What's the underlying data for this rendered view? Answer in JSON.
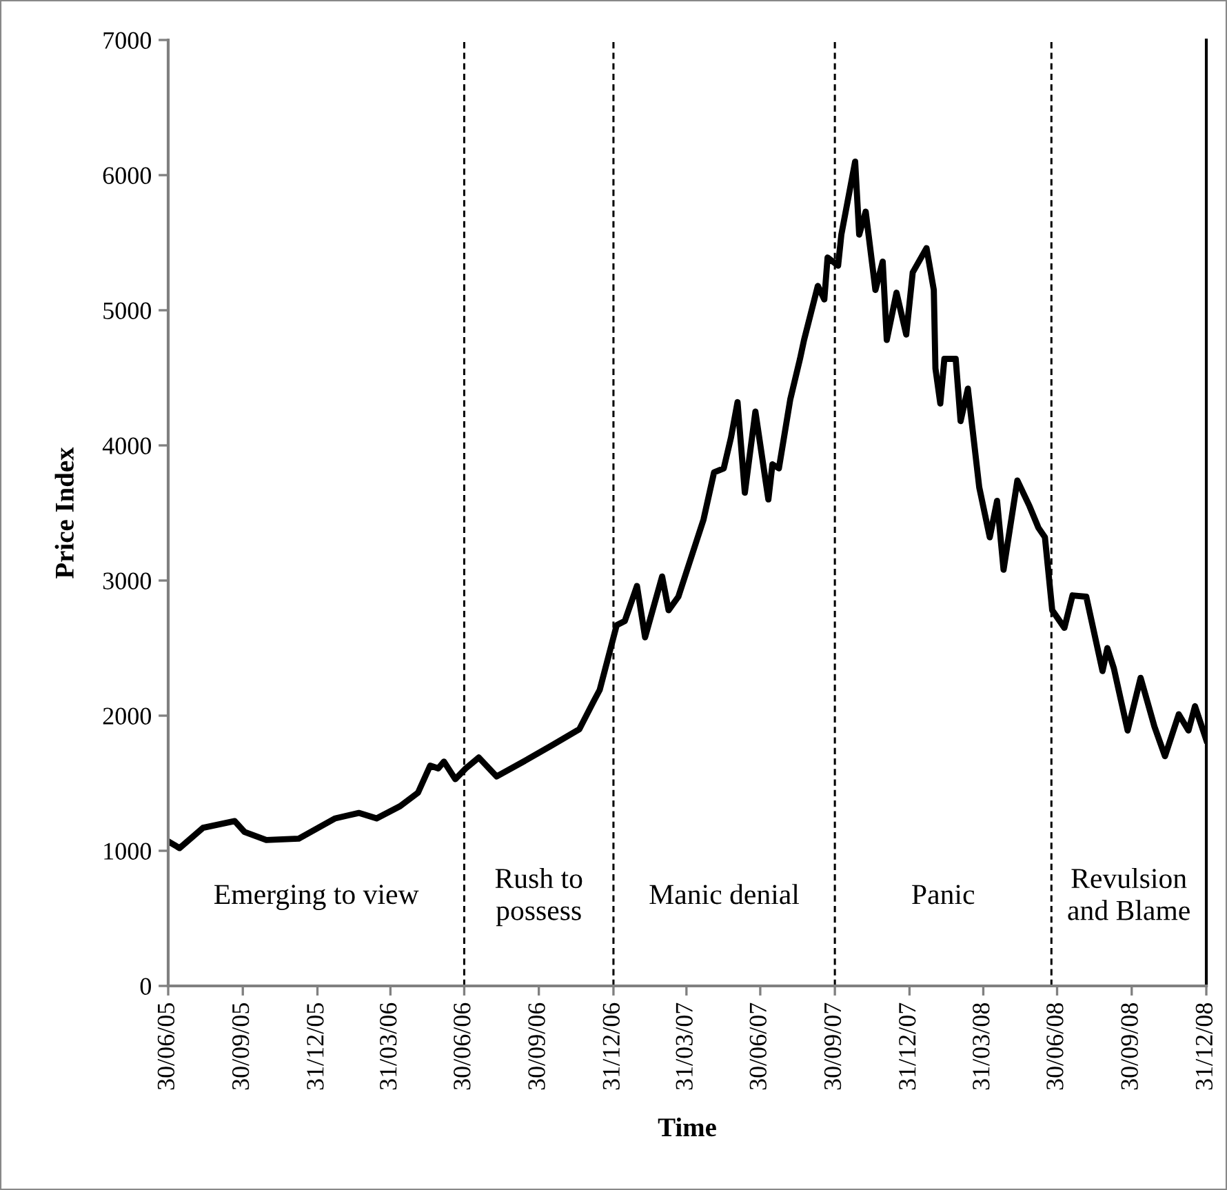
{
  "chart_data": {
    "type": "line",
    "xlabel": "Time",
    "ylabel": "Price Index",
    "x": [
      "2005-06-30",
      "2005-07-14",
      "2005-08-12",
      "2005-09-20",
      "2005-10-02",
      "2005-10-29",
      "2005-12-08",
      "2006-01-22",
      "2006-02-20",
      "2006-03-14",
      "2006-04-12",
      "2006-05-04",
      "2006-05-19",
      "2006-05-29",
      "2006-06-05",
      "2006-06-19",
      "2006-07-02",
      "2006-07-18",
      "2006-08-09",
      "2006-09-17",
      "2006-10-16",
      "2006-11-19",
      "2006-12-06",
      "2006-12-14",
      "2007-01-04",
      "2007-01-14",
      "2007-01-29",
      "2007-02-08",
      "2007-03-01",
      "2007-03-09",
      "2007-03-21",
      "2007-04-21",
      "2007-05-04",
      "2007-05-16",
      "2007-05-25",
      "2007-06-02",
      "2007-06-11",
      "2007-06-24",
      "2007-07-10",
      "2007-07-15",
      "2007-07-23",
      "2007-08-06",
      "2007-08-18",
      "2007-08-23",
      "2007-09-09",
      "2007-09-17",
      "2007-09-21",
      "2007-10-04",
      "2007-10-08",
      "2007-10-25",
      "2007-10-30",
      "2007-11-07",
      "2007-11-19",
      "2007-11-28",
      "2007-12-03",
      "2007-12-15",
      "2007-12-27",
      "2008-01-04",
      "2008-01-21",
      "2008-01-30",
      "2008-02-01",
      "2008-02-07",
      "2008-02-12",
      "2008-02-26",
      "2008-03-03",
      "2008-03-12",
      "2008-03-26",
      "2008-04-08",
      "2008-04-17",
      "2008-04-25",
      "2008-05-12",
      "2008-05-27",
      "2008-06-07",
      "2008-06-15",
      "2008-06-24",
      "2008-07-09",
      "2008-07-19",
      "2008-08-05",
      "2008-08-25",
      "2008-08-31",
      "2008-09-08",
      "2008-09-25",
      "2008-10-11",
      "2008-10-28",
      "2008-11-10",
      "2008-11-27",
      "2008-12-09",
      "2008-12-17",
      "2008-12-31"
    ],
    "series": [
      {
        "color": "#000000",
        "values": [
          1070,
          1020,
          1170,
          1220,
          1140,
          1080,
          1090,
          1240,
          1280,
          1240,
          1330,
          1430,
          1630,
          1610,
          1660,
          1530,
          1610,
          1690,
          1550,
          1680,
          1780,
          1900,
          2100,
          2190,
          2670,
          2700,
          2960,
          2580,
          3030,
          2780,
          2880,
          3450,
          3800,
          3830,
          4060,
          4320,
          3650,
          4250,
          3600,
          3860,
          3830,
          4340,
          4640,
          4780,
          5180,
          5080,
          5390,
          5330,
          5560,
          6100,
          5560,
          5730,
          5150,
          5360,
          4780,
          5130,
          4820,
          5280,
          5460,
          5150,
          4570,
          4310,
          4640,
          4640,
          4180,
          4420,
          3690,
          3320,
          3590,
          3080,
          3740,
          3550,
          3390,
          3320,
          2780,
          2650,
          2890,
          2880,
          2330,
          2500,
          2350,
          1890,
          2280,
          1920,
          1700,
          2010,
          1890,
          2070,
          1820
        ]
      }
    ],
    "xlim": [
      "2005-06-30",
      "2008-12-31"
    ],
    "xticks": [
      {
        "value": "2005-06-30",
        "label": "30/06/05"
      },
      {
        "value": "2005-09-30",
        "label": "30/09/05"
      },
      {
        "value": "2005-12-31",
        "label": "31/12/05"
      },
      {
        "value": "2006-03-31",
        "label": "31/03/06"
      },
      {
        "value": "2006-06-30",
        "label": "30/06/06"
      },
      {
        "value": "2006-09-30",
        "label": "30/09/06"
      },
      {
        "value": "2006-12-31",
        "label": "31/12/06"
      },
      {
        "value": "2007-03-31",
        "label": "31/03/07"
      },
      {
        "value": "2007-06-30",
        "label": "30/06/07"
      },
      {
        "value": "2007-09-30",
        "label": "30/09/07"
      },
      {
        "value": "2007-12-31",
        "label": "31/12/07"
      },
      {
        "value": "2008-03-31",
        "label": "31/03/08"
      },
      {
        "value": "2008-06-30",
        "label": "30/06/08"
      },
      {
        "value": "2008-09-30",
        "label": "30/09/08"
      },
      {
        "value": "2008-12-31",
        "label": "31/12/08"
      }
    ],
    "ylim": [
      0,
      7000
    ],
    "yticks": [
      0,
      1000,
      2000,
      3000,
      4000,
      5000,
      6000,
      7000
    ],
    "grid": false,
    "marker": "none",
    "line_style": "solid",
    "ref_lines": [
      {
        "axis": "x",
        "value": "2006-06-30",
        "color": "#000000",
        "line_style": "dashed"
      },
      {
        "axis": "x",
        "value": "2006-12-31",
        "color": "#000000",
        "line_style": "dashed"
      },
      {
        "axis": "x",
        "value": "2007-09-30",
        "color": "#000000",
        "line_style": "dashed"
      },
      {
        "axis": "x",
        "value": "2008-06-23",
        "color": "#000000",
        "line_style": "dashed"
      }
    ],
    "annotations": [
      "Emerging to view",
      "Rush to\npossess",
      "Manic denial",
      "Panic",
      "Revulsion\nand Blame"
    ]
  }
}
